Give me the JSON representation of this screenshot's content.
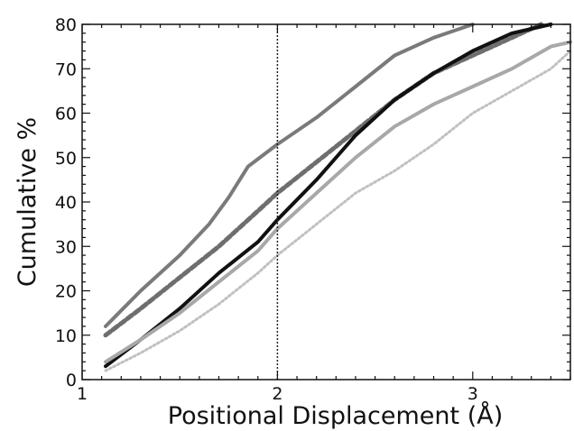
{
  "chart_data": {
    "type": "line",
    "title": "",
    "xlabel": "Positional Displacement (Å)",
    "ylabel": "Cumulative %",
    "xlim": [
      1,
      3.5
    ],
    "ylim": [
      0,
      80
    ],
    "x_ticks": [
      1,
      2,
      3
    ],
    "y_ticks": [
      0,
      10,
      20,
      30,
      40,
      50,
      60,
      70,
      80
    ],
    "grid": false,
    "legend": "none",
    "reference_lines": [
      {
        "axis": "x",
        "value": 2,
        "style": "dotted",
        "color": "#222222"
      }
    ],
    "series": [
      {
        "color": "#7a7a7a",
        "style": "solid",
        "width": 4,
        "x": [
          1.12,
          1.3,
          1.5,
          1.65,
          1.75,
          1.85,
          2.0,
          2.2,
          2.4,
          2.6,
          2.8,
          3.0
        ],
        "y": [
          12,
          20,
          28,
          35,
          41,
          48,
          53,
          59,
          66,
          73,
          77,
          80
        ]
      },
      {
        "color": "#6e6e6e",
        "style": "dashed",
        "width": 5,
        "x": [
          1.12,
          1.3,
          1.5,
          1.7,
          1.9,
          2.0,
          2.2,
          2.4,
          2.6,
          2.8,
          3.0,
          3.2,
          3.35
        ],
        "y": [
          10,
          16,
          23,
          30,
          38,
          42,
          49,
          56,
          63,
          69,
          73,
          77,
          80
        ]
      },
      {
        "color": "#111111",
        "style": "solid",
        "width": 4,
        "x": [
          1.12,
          1.3,
          1.5,
          1.7,
          1.9,
          2.0,
          2.2,
          2.4,
          2.6,
          2.8,
          3.0,
          3.2,
          3.4
        ],
        "y": [
          3,
          9,
          16,
          24,
          31,
          36,
          45,
          55,
          63,
          69,
          74,
          78,
          80
        ]
      },
      {
        "color": "#a8a8a8",
        "style": "solid",
        "width": 4,
        "x": [
          1.12,
          1.3,
          1.5,
          1.7,
          1.9,
          2.0,
          2.2,
          2.4,
          2.6,
          2.8,
          3.0,
          3.2,
          3.4,
          3.5
        ],
        "y": [
          4,
          9,
          15,
          22,
          29,
          34,
          42,
          50,
          57,
          62,
          66,
          70,
          75,
          76
        ]
      },
      {
        "color": "#c0c0c0",
        "style": "dotted",
        "width": 3,
        "x": [
          1.12,
          1.3,
          1.5,
          1.7,
          1.9,
          2.0,
          2.2,
          2.4,
          2.6,
          2.8,
          3.0,
          3.2,
          3.4,
          3.5
        ],
        "y": [
          2,
          6,
          11,
          17,
          24,
          28,
          35,
          42,
          47,
          53,
          60,
          65,
          70,
          74
        ]
      }
    ]
  }
}
